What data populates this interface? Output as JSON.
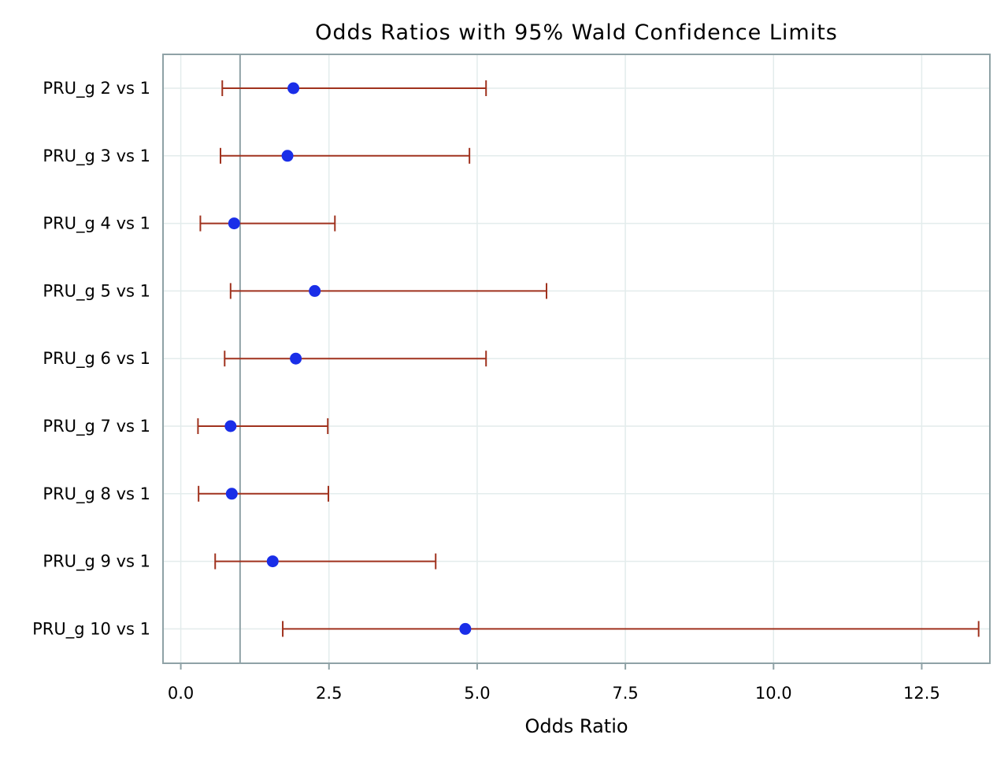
{
  "chart_data": {
    "type": "forest",
    "title": "Odds Ratios with 95% Wald Confidence Limits",
    "xlabel": "Odds Ratio",
    "ylabel": "",
    "xlim": [
      -0.3,
      13.65
    ],
    "xticks": [
      "0.0",
      "2.5",
      "5.0",
      "7.5",
      "10.0",
      "12.5"
    ],
    "reference_line": 1.0,
    "grid": true,
    "colors": {
      "point": "#1a2ee8",
      "interval": "#a0321e",
      "frame": "#8fa2a6",
      "grid": "#e3ecec",
      "reference": "#8fa2a6"
    },
    "categories": [
      "PRU_g 2 vs 1",
      "PRU_g 3 vs 1",
      "PRU_g 4 vs 1",
      "PRU_g 5 vs 1",
      "PRU_g 6 vs 1",
      "PRU_g 7 vs 1",
      "PRU_g 8 vs 1",
      "PRU_g 9 vs 1",
      "PRU_g 10 vs 1"
    ],
    "estimates": [
      1.9,
      1.8,
      0.9,
      2.26,
      1.94,
      0.84,
      0.86,
      1.55,
      4.8
    ],
    "lower": [
      0.7,
      0.67,
      0.33,
      0.84,
      0.74,
      0.29,
      0.3,
      0.58,
      1.72
    ],
    "upper": [
      5.15,
      4.87,
      2.6,
      6.17,
      5.15,
      2.48,
      2.49,
      4.3,
      13.46
    ]
  }
}
